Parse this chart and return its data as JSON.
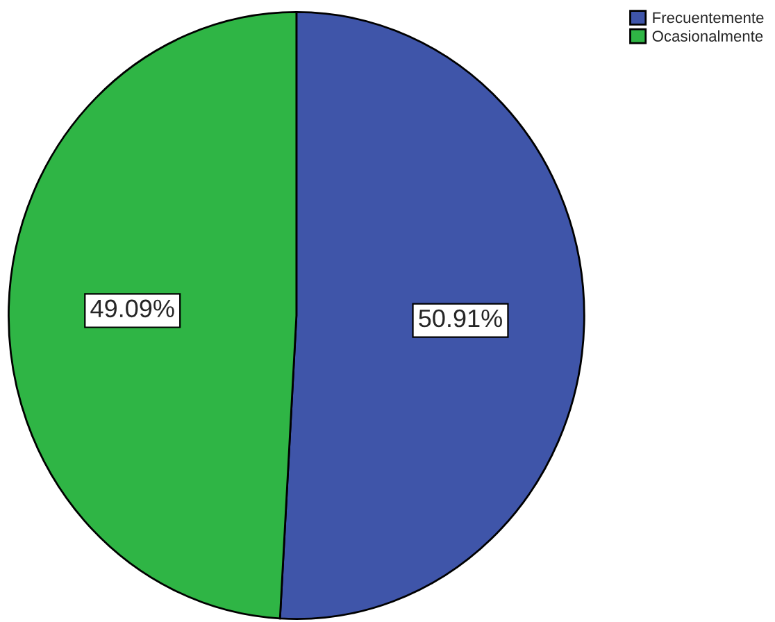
{
  "chart_data": {
    "type": "pie",
    "categories": [
      "Frecuentemente",
      "Ocasionalmente"
    ],
    "values": [
      50.91,
      49.09
    ],
    "colors": [
      "#3f55a9",
      "#2fb545"
    ],
    "value_labels": [
      "50.91%",
      "49.09%"
    ],
    "legend": "top right"
  }
}
